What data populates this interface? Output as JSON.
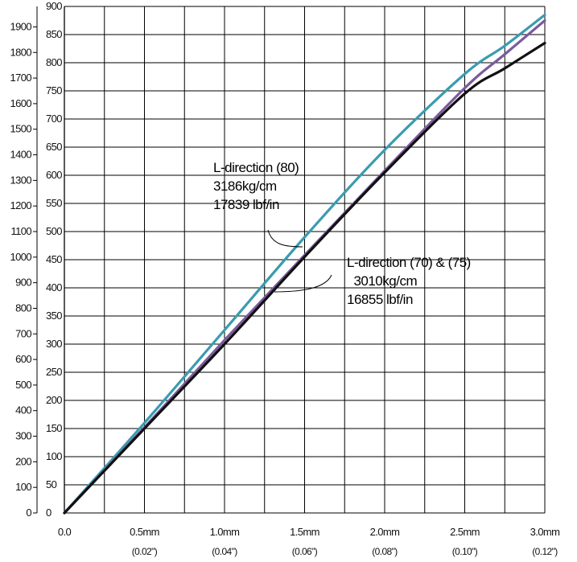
{
  "chart_data": {
    "type": "line",
    "title": "",
    "xlabel": "",
    "ylabel": "",
    "x_ticks": [
      {
        "value": 0.0,
        "label": "0.0",
        "sub": ""
      },
      {
        "value": 0.5,
        "label": "0.5mm",
        "sub": "(0.02\")"
      },
      {
        "value": 1.0,
        "label": "1.0mm",
        "sub": "(0.04\")"
      },
      {
        "value": 1.5,
        "label": "1.5mm",
        "sub": "(0.06\")"
      },
      {
        "value": 2.0,
        "label": "2.0mm",
        "sub": "(0.08\")"
      },
      {
        "value": 2.5,
        "label": "2.5mm",
        "sub": "(0.10\")"
      },
      {
        "value": 3.0,
        "label": "3.0mm",
        "sub": "(0.12\")"
      }
    ],
    "xlim": [
      0,
      3.0
    ],
    "ylim_inner_kgf": [
      0,
      900
    ],
    "inner_ticks": [
      "0",
      "50",
      "100",
      "150",
      "200",
      "250",
      "300",
      "350",
      "400",
      "450",
      "500",
      "550",
      "600",
      "650",
      "700",
      "750",
      "800",
      "850",
      "900"
    ],
    "outer_ticks": [
      "0",
      "100",
      "200",
      "300",
      "400",
      "500",
      "600",
      "700",
      "800",
      "900",
      "1000",
      "1100",
      "1200",
      "1300",
      "1400",
      "1500",
      "1600",
      "1700",
      "1800",
      "1900"
    ],
    "outer_max_lbf": 1980,
    "grid": true,
    "series": [
      {
        "color": "#3b9bb0",
        "x": [
          0,
          0.5,
          1.0,
          1.5,
          2.0,
          2.5,
          2.75,
          3.0
        ],
        "y": [
          0,
          160,
          325,
          490,
          645,
          780,
          830,
          885
        ]
      },
      {
        "color": "#7a5a9c",
        "x": [
          0,
          0.5,
          1.0,
          1.5,
          2.0,
          2.5,
          2.75,
          3.0
        ],
        "y": [
          0,
          152,
          307,
          458,
          608,
          755,
          815,
          875
        ]
      },
      {
        "color": "#111111",
        "x": [
          0,
          0.5,
          1.0,
          1.5,
          2.0,
          2.5,
          2.75,
          3.0
        ],
        "y": [
          0,
          150,
          300,
          455,
          605,
          745,
          790,
          835
        ]
      }
    ],
    "annotations": [
      {
        "lines": [
          "L-direction (80)",
          "3186kg/cm",
          "17839 lbf/in"
        ]
      },
      {
        "lines": [
          "L-direction (70) & (75)",
          "  3010kg/cm",
          "16855 lbf/in"
        ]
      }
    ]
  }
}
